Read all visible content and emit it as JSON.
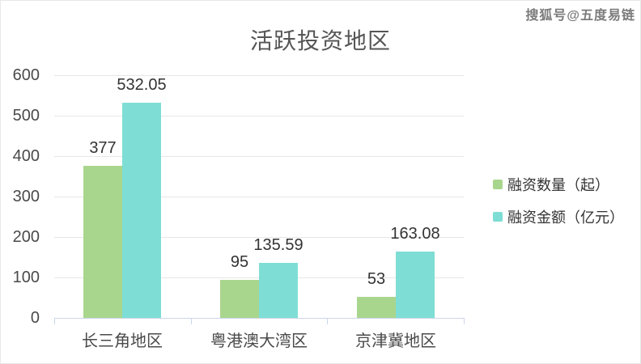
{
  "watermark": "搜狐号@五度易链",
  "chart_data": {
    "type": "bar",
    "title": "活跃投资地区",
    "categories": [
      "长三角地区",
      "粤港澳大湾区",
      "京津冀地区"
    ],
    "series": [
      {
        "name": "融资数量（起）",
        "color": "#a9d68d",
        "values": [
          377,
          95,
          53
        ]
      },
      {
        "name": "融资金额（亿元）",
        "color": "#7eded5",
        "values": [
          532.05,
          135.59,
          163.08
        ]
      }
    ],
    "data_labels": {
      "series_0": [
        "377",
        "95",
        "53"
      ],
      "series_1": [
        "532.05",
        "135.59",
        "163.08"
      ]
    },
    "ylim": [
      0,
      600
    ],
    "ytick_step": 100,
    "ytick_labels": [
      "0",
      "100",
      "200",
      "300",
      "400",
      "500",
      "600"
    ],
    "grid": true,
    "legend_position": "right",
    "colors": {
      "series_green": "#a9d68d",
      "series_teal": "#7eded5",
      "gridline": "#e6e6e6",
      "axis_line": "#ccd6eb",
      "axis_label": "#4a4a4a",
      "data_label": "#333333",
      "title": "#555555"
    }
  }
}
